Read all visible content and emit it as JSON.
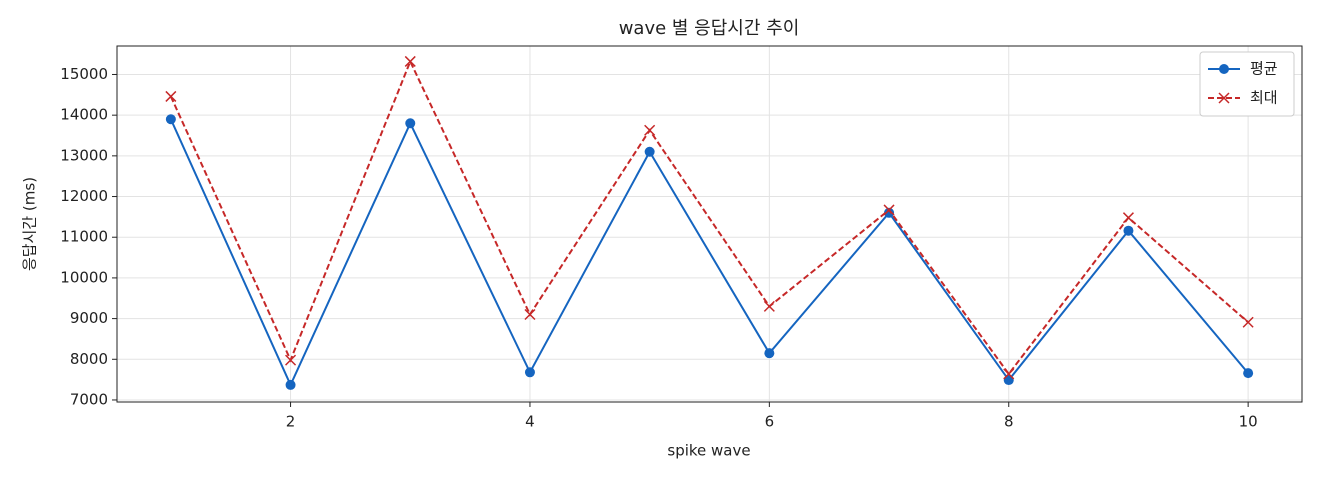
{
  "chart_data": {
    "type": "line",
    "title": "wave 별 응답시간 추이",
    "x_label": "spike wave",
    "y_label": "응답시간 (ms)",
    "x": [
      1,
      2,
      3,
      4,
      5,
      6,
      7,
      8,
      9,
      10
    ],
    "series": [
      {
        "name": "평균",
        "color": "#1565c0",
        "marker": "o",
        "linestyle": "solid",
        "values": [
          13900,
          7370,
          13800,
          7680,
          13100,
          8150,
          11600,
          7490,
          11160,
          7660
        ]
      },
      {
        "name": "최대",
        "color": "#c62828",
        "marker": "x",
        "linestyle": "dashed",
        "values": [
          14460,
          7980,
          15320,
          9100,
          13630,
          9300,
          11670,
          7640,
          11480,
          8910
        ]
      }
    ],
    "xlim": [
      0.55,
      10.45
    ],
    "ylim": [
      6950,
      15700
    ],
    "xticks": [
      2,
      4,
      6,
      8,
      10
    ],
    "yticks": [
      7000,
      8000,
      9000,
      10000,
      11000,
      12000,
      13000,
      14000,
      15000
    ],
    "grid": true,
    "legend": "upper right"
  }
}
